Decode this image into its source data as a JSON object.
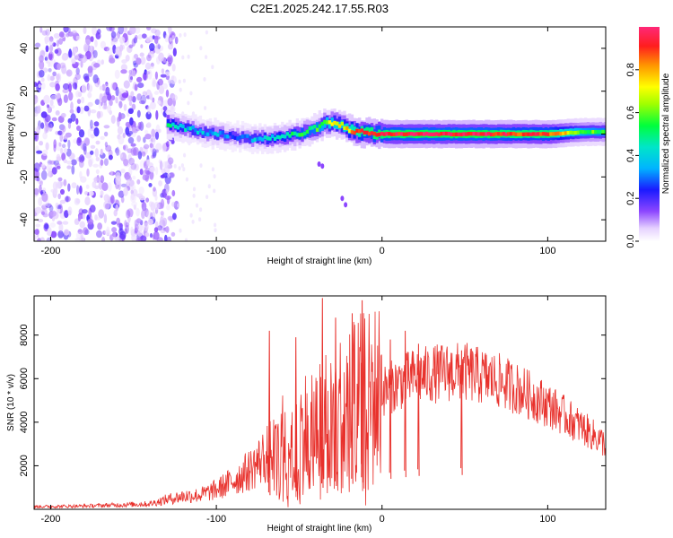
{
  "title": "C2E1.2025.242.17.55.R03",
  "chart_data": [
    {
      "type": "heatmap",
      "name": "spectrogram",
      "xlabel": "Height of straight line (km)",
      "ylabel": "Frequency (Hz)",
      "xlim": [
        -210,
        135
      ],
      "ylim": [
        -50,
        50
      ],
      "xticks": [
        -200,
        -100,
        0,
        100
      ],
      "xtick_labels": [
        "-200",
        "-100",
        "0",
        "100"
      ],
      "yticks": [
        -40,
        -20,
        0,
        20,
        40
      ],
      "ytick_labels": [
        "-40",
        "-20",
        "0",
        "20",
        "40"
      ],
      "noise_region_x": [
        -210,
        -130
      ],
      "ridge_x": [
        -130,
        -120,
        -110,
        -100,
        -90,
        -80,
        -70,
        -60,
        -50,
        -40,
        -35,
        -30,
        -25,
        -20,
        -15,
        -10,
        0,
        20,
        40,
        60,
        80,
        100,
        120,
        135
      ],
      "ridge_freq": [
        5,
        3,
        1,
        0,
        -1,
        -2,
        -2,
        -1,
        0,
        3,
        5,
        5,
        4,
        2,
        1,
        0.5,
        0,
        0,
        0,
        0,
        0,
        0,
        1,
        1
      ],
      "ridge_amplitude": [
        0.45,
        0.4,
        0.35,
        0.35,
        0.3,
        0.35,
        0.4,
        0.45,
        0.5,
        0.55,
        0.65,
        0.7,
        0.7,
        0.8,
        0.85,
        0.9,
        0.92,
        0.95,
        0.95,
        0.95,
        0.9,
        0.9,
        0.6,
        0.55
      ]
    },
    {
      "type": "colorbar",
      "name": "normalized-spectral-amplitude",
      "label": "Normalized spectral amplitude",
      "range": [
        0,
        1
      ],
      "ticks": [
        0.0,
        0.2,
        0.4,
        0.6,
        0.8
      ],
      "tick_labels": [
        "0.0",
        "0.2",
        "0.4",
        "0.6",
        "0.8"
      ]
    },
    {
      "type": "line",
      "name": "snr",
      "xlabel": "Height of straight line (km)",
      "ylabel": "SNR (10 * v/v)",
      "xlim": [
        -210,
        135
      ],
      "ylim": [
        0,
        9800
      ],
      "xticks": [
        -200,
        -100,
        0,
        100
      ],
      "xtick_labels": [
        "-200",
        "-100",
        "0",
        "100"
      ],
      "yticks": [
        2000,
        4000,
        6000,
        8000
      ],
      "ytick_labels": [
        "2000",
        "4000",
        "6000",
        "8000"
      ],
      "color": "#e8312c",
      "envelope_x": [
        -210,
        -180,
        -140,
        -130,
        -120,
        -110,
        -100,
        -90,
        -80,
        -70,
        -60,
        -50,
        -40,
        -30,
        -20,
        -10,
        0,
        10,
        20,
        30,
        40,
        50,
        60,
        70,
        80,
        90,
        100,
        110,
        120,
        135
      ],
      "envelope_y": [
        120,
        150,
        250,
        450,
        600,
        650,
        900,
        1300,
        1800,
        2500,
        3000,
        3400,
        3800,
        4200,
        4600,
        5000,
        5400,
        5800,
        6100,
        6200,
        6300,
        6300,
        6100,
        5900,
        5600,
        5200,
        4800,
        4300,
        3800,
        3000
      ],
      "spikes_x": [
        -68,
        -52,
        -36,
        -28,
        -18,
        -12,
        5,
        14,
        22,
        48
      ],
      "spikes_y": [
        8200,
        7900,
        9700,
        8800,
        9000,
        9600,
        7800,
        8200,
        7600,
        7300
      ]
    }
  ],
  "colors": {
    "line": "#e8312c",
    "background": "#ffffff",
    "axis": "#000000"
  }
}
